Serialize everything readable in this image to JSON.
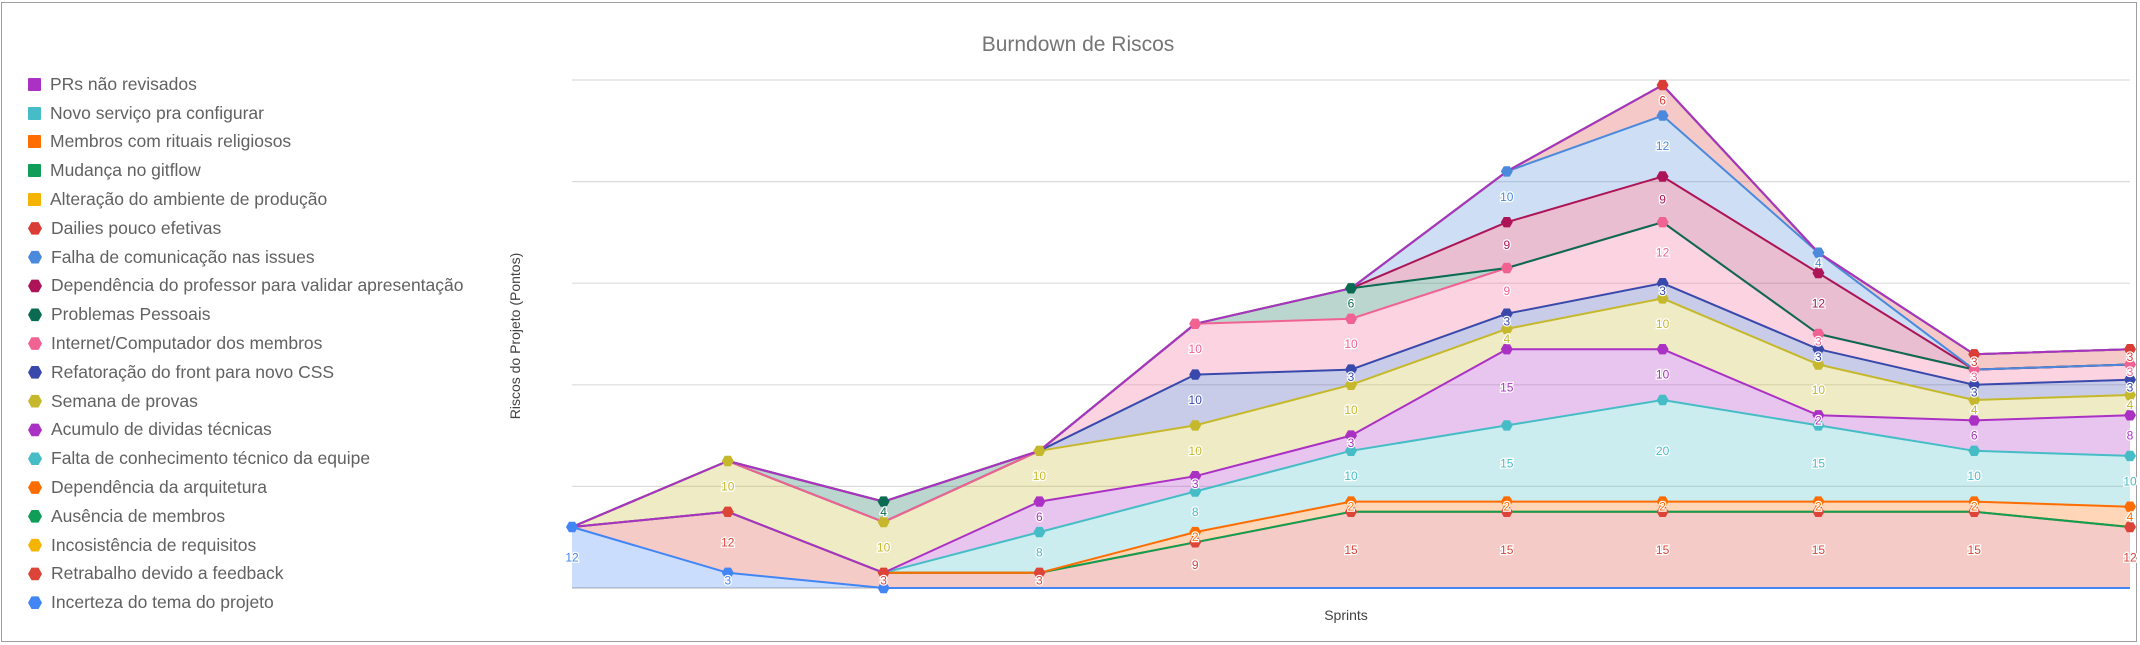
{
  "chart_data": {
    "type": "area",
    "stacked": true,
    "title": "Burndown de Riscos",
    "xlabel": "Sprints",
    "ylabel": "Riscos do Projeto (Pontos)",
    "ylim": [
      0,
      100
    ],
    "gridlines": [
      0,
      20,
      40,
      60,
      80,
      100
    ],
    "grid": true,
    "legend_position": "left",
    "x_count": 11,
    "series": [
      {
        "name": "Incerteza do tema do projeto",
        "color": "#4285f4",
        "marker": "hex",
        "values": [
          12,
          3,
          0,
          0,
          0,
          0,
          0,
          0,
          0,
          0,
          0
        ]
      },
      {
        "name": "Retrabalho devido a feedback",
        "color": "#db4437",
        "marker": "hex",
        "values": [
          0,
          12,
          3,
          3,
          9,
          15,
          15,
          15,
          15,
          15,
          12
        ]
      },
      {
        "name": "Incosistência de requisitos",
        "color": "#f4b400",
        "marker": "hex",
        "values": [
          0,
          0,
          0,
          0,
          0,
          0,
          0,
          0,
          0,
          0,
          0
        ]
      },
      {
        "name": "Ausência de membros",
        "color": "#0f9d58",
        "marker": "hex",
        "values": [
          0,
          0,
          0,
          0,
          0,
          0,
          0,
          0,
          0,
          0,
          0
        ]
      },
      {
        "name": "Dependência da arquitetura",
        "color": "#ff6d01",
        "marker": "hex",
        "values": [
          0,
          0,
          0,
          0,
          2,
          2,
          2,
          2,
          2,
          2,
          4
        ]
      },
      {
        "name": "Falta de conhecimento técnico da equipe",
        "color": "#46bdc6",
        "marker": "hex",
        "values": [
          0,
          0,
          0,
          8,
          8,
          10,
          15,
          20,
          15,
          10,
          10
        ]
      },
      {
        "name": "Acumulo de dividas técnicas",
        "color": "#ab30c4",
        "marker": "hex",
        "values": [
          0,
          0,
          0,
          6,
          3,
          3,
          15,
          10,
          2,
          6,
          8
        ]
      },
      {
        "name": "Semana de provas",
        "color": "#c5b82c",
        "marker": "hex",
        "values": [
          0,
          10,
          10,
          10,
          10,
          10,
          4,
          10,
          10,
          4,
          4
        ]
      },
      {
        "name": "Refatoração do front para novo CSS",
        "color": "#3949ab",
        "marker": "hex",
        "values": [
          0,
          0,
          0,
          0,
          10,
          3,
          3,
          3,
          3,
          3,
          3
        ]
      },
      {
        "name": "Internet/Computador dos membros",
        "color": "#f06292",
        "marker": "hex",
        "values": [
          0,
          0,
          0,
          0,
          10,
          10,
          9,
          12,
          3,
          3,
          3
        ]
      },
      {
        "name": "Problemas Pessoais",
        "color": "#0b6b52",
        "marker": "hex",
        "values": [
          0,
          0,
          4,
          0,
          0,
          6,
          0,
          0,
          0,
          0,
          0
        ]
      },
      {
        "name": "Dependência do professor para validar apresentação",
        "color": "#ad1457",
        "marker": "hex",
        "values": [
          0,
          0,
          0,
          0,
          0,
          0,
          9,
          9,
          12,
          0,
          0
        ]
      },
      {
        "name": "Falha de comunicação nas issues",
        "color": "#4a89dc",
        "marker": "hex",
        "values": [
          0,
          0,
          0,
          0,
          0,
          0,
          10,
          12,
          4,
          0,
          0
        ]
      },
      {
        "name": "Dailies pouco efetivas",
        "color": "#d93d36",
        "marker": "hex",
        "values": [
          0,
          0,
          0,
          0,
          0,
          0,
          0,
          6,
          0,
          3,
          3
        ]
      },
      {
        "name": "Alteração do ambiente de produção",
        "color": "#f4b400",
        "marker": "square",
        "values": [
          0,
          0,
          0,
          0,
          0,
          0,
          0,
          0,
          0,
          0,
          0
        ]
      },
      {
        "name": "Mudança no gitflow",
        "color": "#0f9d58",
        "marker": "square",
        "values": [
          0,
          0,
          0,
          0,
          0,
          0,
          0,
          0,
          0,
          0,
          0
        ]
      },
      {
        "name": "Membros com rituais religiosos",
        "color": "#ff6d01",
        "marker": "square",
        "values": [
          0,
          0,
          0,
          0,
          0,
          0,
          0,
          0,
          0,
          0,
          0
        ]
      },
      {
        "name": "Novo serviço pra configurar",
        "color": "#46bdc6",
        "marker": "square",
        "values": [
          0,
          0,
          0,
          0,
          0,
          0,
          0,
          0,
          0,
          0,
          0
        ]
      },
      {
        "name": "PRs não revisados",
        "color": "#ab30c4",
        "marker": "square",
        "values": [
          0,
          0,
          0,
          0,
          0,
          0,
          0,
          0,
          0,
          0,
          0
        ]
      }
    ]
  }
}
